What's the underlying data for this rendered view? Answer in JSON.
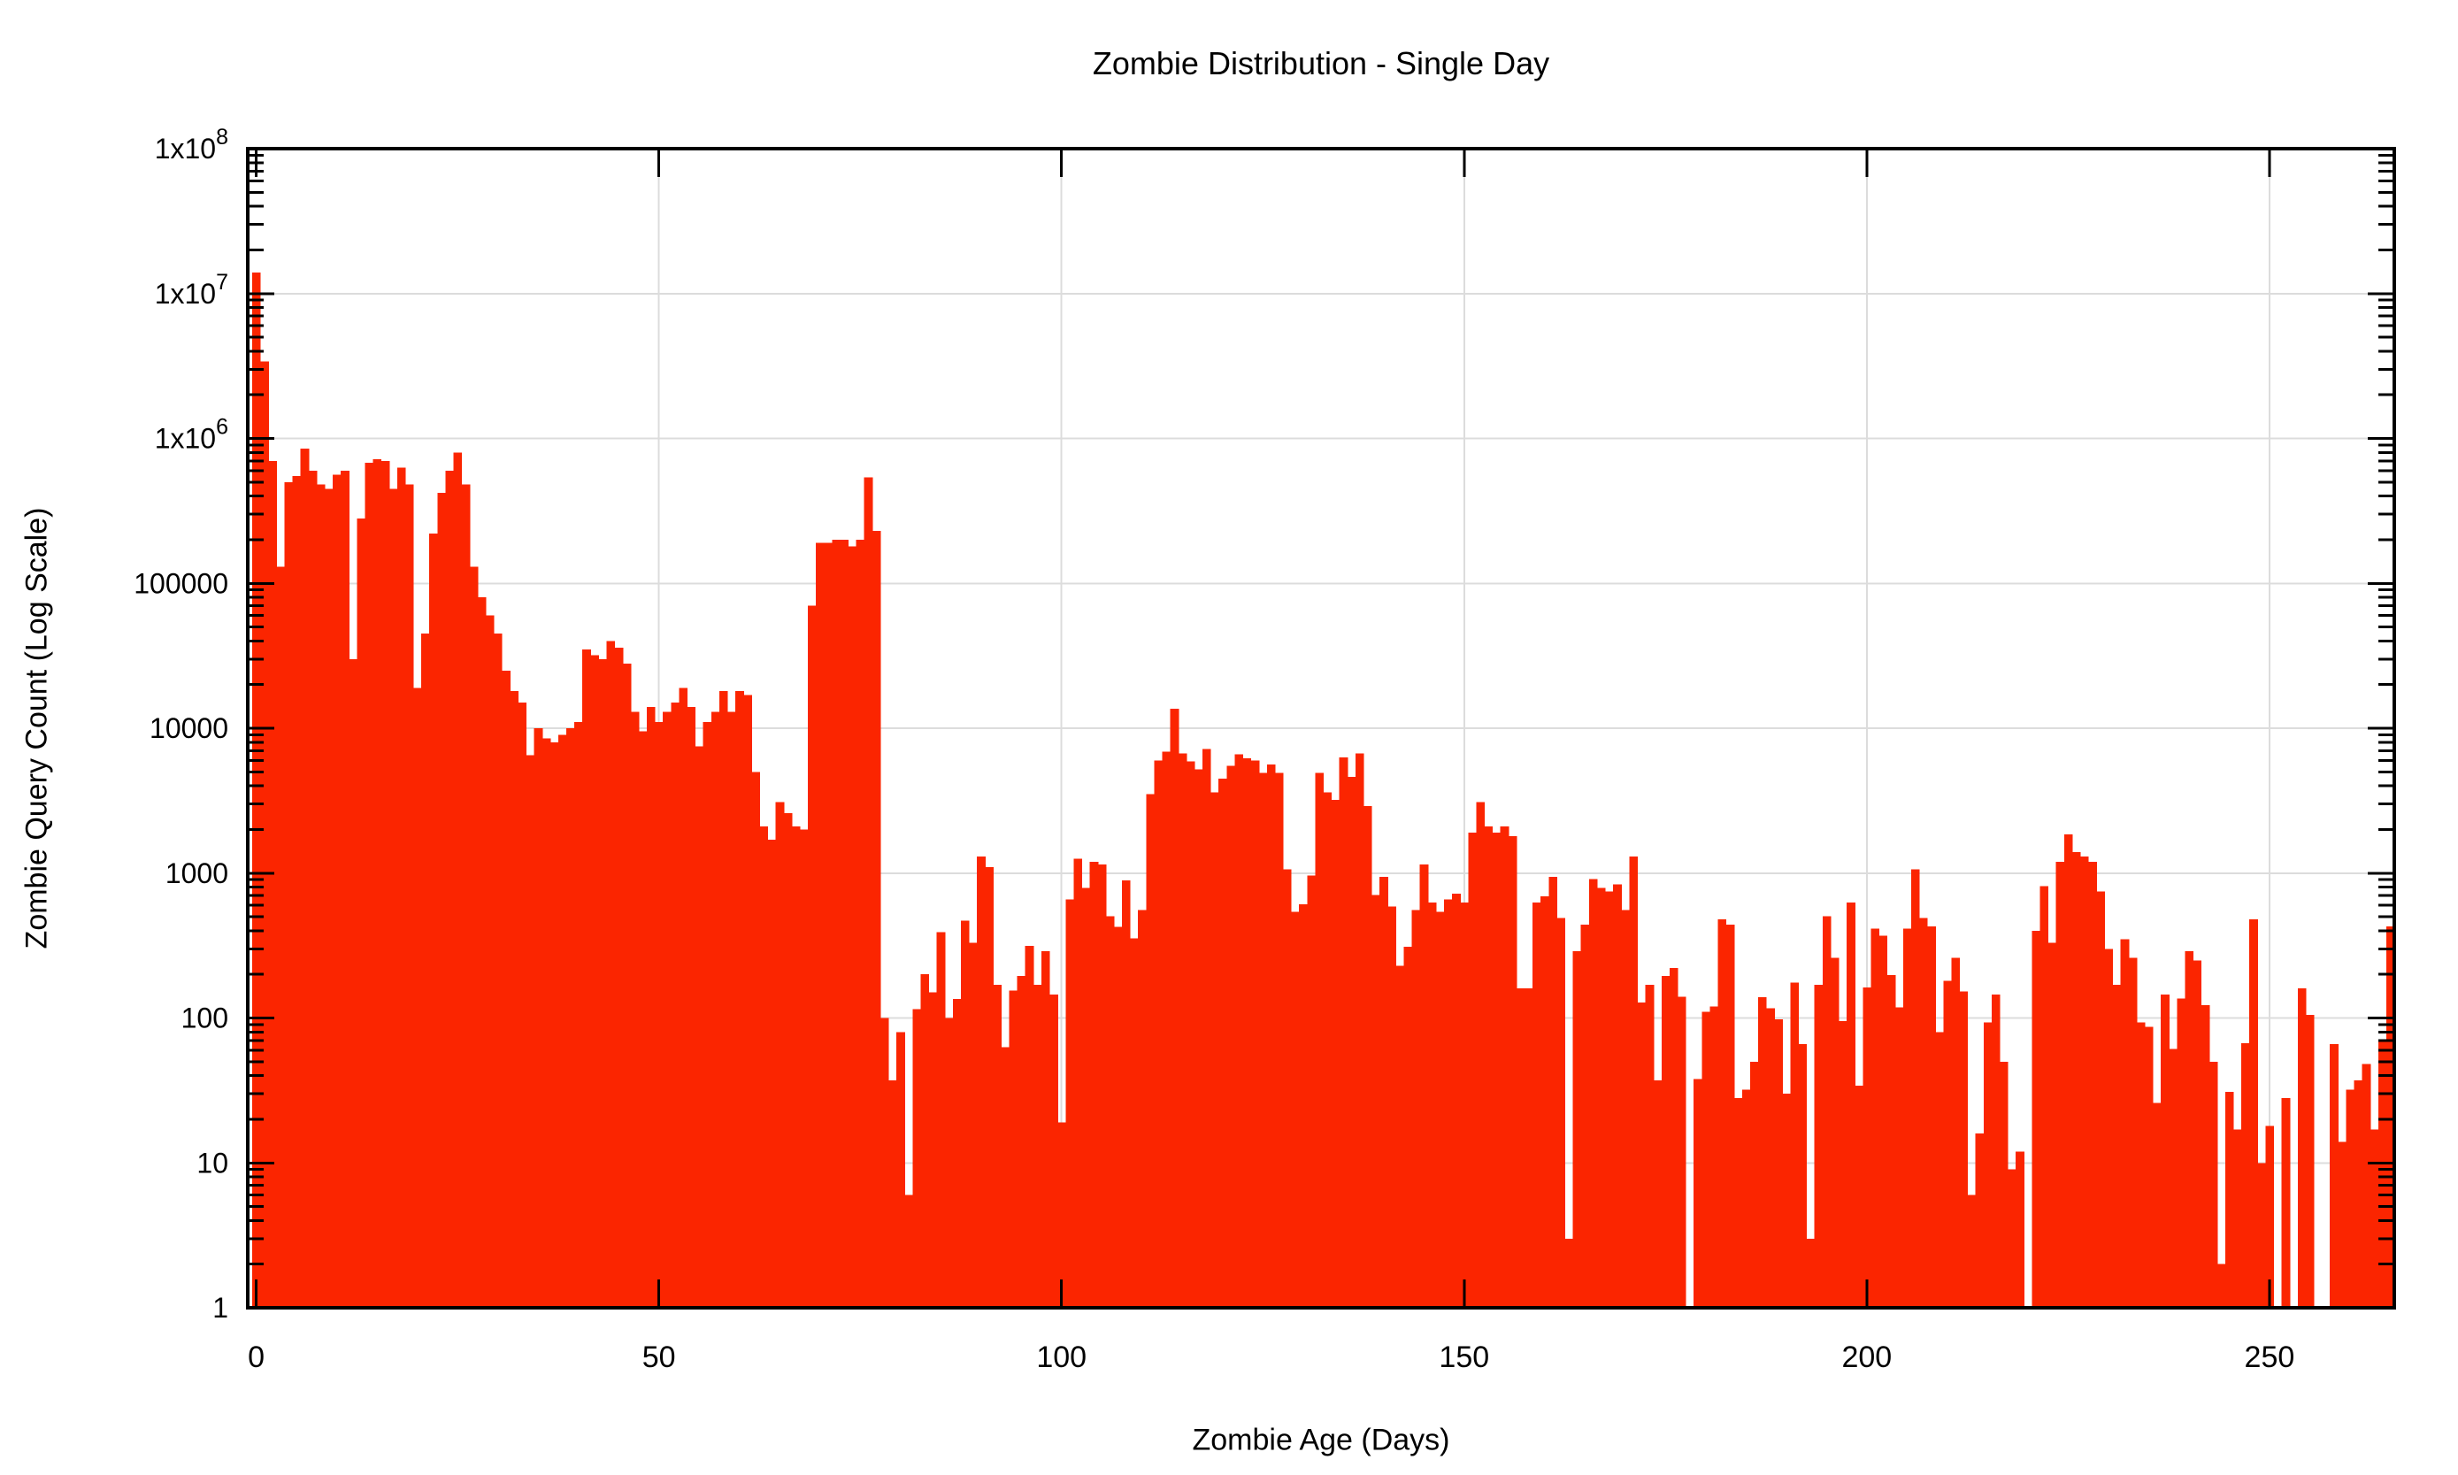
{
  "title": "Zombie Distribution - Single Day",
  "x_axis": {
    "label": "Zombie Age (Days)",
    "ticks": [
      0,
      50,
      100,
      150,
      200,
      250
    ]
  },
  "y_axis": {
    "label": "Zombie Query Count (Log Scale)",
    "ticks": [
      {
        "text": "1"
      },
      {
        "text": "10"
      },
      {
        "text": "100"
      },
      {
        "text": "1000"
      },
      {
        "text": "10000"
      },
      {
        "text": "100000"
      },
      {
        "text": "1x10",
        "exp": "6"
      },
      {
        "text": "1x10",
        "exp": "7"
      },
      {
        "text": "1x10",
        "exp": "8"
      }
    ]
  },
  "colors": {
    "bar": "#fb2500",
    "grid": "#dcdcdc",
    "axis": "#000000",
    "background": "#ffffff"
  },
  "chart_data": {
    "type": "bar",
    "title": "Zombie Distribution - Single Day",
    "xlabel": "Zombie Age (Days)",
    "ylabel": "Zombie Query Count (Log Scale)",
    "y_scale": "log10",
    "ylim": [
      1,
      100000000
    ],
    "xlim": [
      0,
      265
    ],
    "grid": true,
    "legend": "none",
    "bin_width_days": 1,
    "x_is_index": true,
    "values": [
      14000000,
      3400000,
      700000,
      130000,
      500000,
      550000,
      850000,
      600000,
      480000,
      450000,
      560000,
      600000,
      30000,
      280000,
      680000,
      720000,
      700000,
      450000,
      630000,
      480000,
      19000,
      45000,
      220000,
      420000,
      600000,
      800000,
      480000,
      130000,
      80000,
      60000,
      45000,
      25000,
      18000,
      15000,
      6500,
      10000,
      8500,
      8000,
      9000,
      10000,
      11000,
      35000,
      32000,
      30000,
      40000,
      36000,
      28000,
      13000,
      9500,
      14000,
      11000,
      13000,
      15000,
      19000,
      14000,
      7500,
      11000,
      13000,
      18000,
      13000,
      18000,
      17000,
      5000,
      2100,
      1700,
      3100,
      2600,
      2100,
      2000,
      70000,
      190000,
      190000,
      200000,
      200000,
      180000,
      200000,
      540000,
      230000,
      100,
      37,
      80,
      6,
      115,
      200,
      150,
      390,
      100,
      135,
      470,
      330,
      1300,
      1100,
      170,
      63,
      155,
      195,
      315,
      170,
      290,
      145,
      19,
      660,
      1260,
      790,
      1200,
      1150,
      505,
      425,
      890,
      355,
      555,
      3500,
      6000,
      6900,
      13600,
      6700,
      5900,
      5200,
      7200,
      3600,
      4500,
      5500,
      6600,
      6200,
      6000,
      4900,
      5600,
      4900,
      1060,
      540,
      610,
      965,
      4900,
      3600,
      3200,
      6300,
      4600,
      6700,
      2900,
      705,
      940,
      590,
      230,
      310,
      555,
      1150,
      625,
      540,
      660,
      720,
      625,
      1900,
      3100,
      2100,
      1900,
      2100,
      1800,
      160,
      160,
      625,
      690,
      940,
      490,
      3,
      290,
      440,
      910,
      790,
      745,
      835,
      555,
      1300,
      128,
      170,
      37,
      195,
      222,
      140,
      1,
      38,
      110,
      120,
      480,
      440,
      28,
      32,
      50,
      139,
      117,
      98,
      30,
      175,
      66,
      3,
      170,
      505,
      260,
      95,
      625,
      34,
      162,
      415,
      370,
      198,
      118,
      415,
      1060,
      490,
      428,
      80,
      180,
      260,
      152,
      6,
      16,
      93,
      145,
      50,
      9,
      12,
      1,
      400,
      810,
      330,
      1200,
      1850,
      1400,
      1300,
      1200,
      745,
      300,
      170,
      350,
      260,
      93,
      87,
      26,
      145,
      61,
      136,
      290,
      250,
      123,
      50,
      2,
      31,
      17,
      67,
      480,
      10,
      18,
      1,
      28,
      1,
      160,
      105,
      1,
      1,
      66,
      14,
      32,
      37,
      48,
      17,
      71,
      430
    ]
  }
}
